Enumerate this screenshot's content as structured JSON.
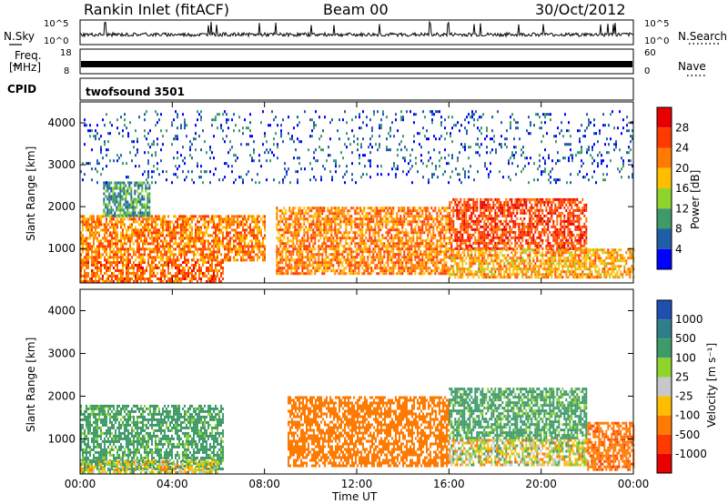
{
  "header": {
    "station": "Rankin Inlet (fitACF)",
    "beam": "Beam 00",
    "date": "30/Oct/2012"
  },
  "top_panels": {
    "nsky_label": "N.Sky",
    "nsky_ticks": [
      "10^5",
      "10^0"
    ],
    "nsearch_label": "N.Search",
    "nsearch_ticks": [
      "10^5",
      "10^0"
    ],
    "freq_label_1": "Freq.",
    "freq_label_2": "[MHz]",
    "freq_ticks": [
      "18",
      "8"
    ],
    "nave_label": "Nave",
    "nave_ticks": [
      "60",
      "0"
    ],
    "cpid_label": "CPID",
    "cpid_value": "twofsound 3501"
  },
  "chart_data": [
    {
      "type": "heatmap",
      "title": "",
      "xlabel": "Time UT",
      "ylabel": "Slant Range [km]",
      "x_ticks": [
        "00:00",
        "04:00",
        "08:00",
        "12:00",
        "16:00",
        "20:00",
        "00:00"
      ],
      "x_hours": [
        0,
        4,
        8,
        12,
        16,
        20,
        24
      ],
      "y_ticks": [
        1000,
        2000,
        3000,
        4000
      ],
      "xlim": [
        0,
        24
      ],
      "ylim": [
        180,
        4500
      ],
      "colorbar": {
        "label": "Power [dB]",
        "ticks": [
          "28",
          "24",
          "20",
          "16",
          "12",
          "8",
          "4"
        ],
        "colors": [
          "#e80000",
          "#ff3a00",
          "#ff7a00",
          "#ffbe00",
          "#8fd42b",
          "#3f9a6a",
          "#1f5fa8",
          "#0000ff"
        ]
      },
      "bands": [
        {
          "t0": 0.0,
          "t1": 6.2,
          "r0": 200,
          "r1": 700,
          "value": 26
        },
        {
          "t0": 0.0,
          "t1": 8.0,
          "r0": 700,
          "r1": 1800,
          "value": 24
        },
        {
          "t0": 1.0,
          "t1": 3.0,
          "r0": 1800,
          "r1": 2600,
          "value": 12
        },
        {
          "t0": 8.5,
          "t1": 16.0,
          "r0": 400,
          "r1": 2000,
          "value": 24
        },
        {
          "t0": 16.0,
          "t1": 22.0,
          "r0": 1000,
          "r1": 2200,
          "value": 28
        },
        {
          "t0": 16.0,
          "t1": 24.0,
          "r0": 300,
          "r1": 1000,
          "value": 22
        },
        {
          "t0": 0.0,
          "t1": 24.0,
          "r0": 2600,
          "r1": 4300,
          "value": 8
        }
      ]
    },
    {
      "type": "heatmap",
      "title": "",
      "xlabel": "Time UT",
      "ylabel": "Slant Range [km]",
      "x_ticks": [
        "00:00",
        "04:00",
        "08:00",
        "12:00",
        "16:00",
        "20:00",
        "00:00"
      ],
      "x_hours": [
        0,
        4,
        8,
        12,
        16,
        20,
        24
      ],
      "y_ticks": [
        1000,
        2000,
        3000,
        4000
      ],
      "xlim": [
        0,
        24
      ],
      "ylim": [
        180,
        4500
      ],
      "colorbar": {
        "label": "Velocity [m s⁻¹]",
        "ticks": [
          "1000",
          "500",
          "100",
          "25",
          "-25",
          "-100",
          "-500",
          "-1000"
        ],
        "colors": [
          "#1f4fb0",
          "#2f7f8a",
          "#3f9a6a",
          "#8fd42b",
          "#c8c8c8",
          "#ffbe00",
          "#ff7a00",
          "#ff3a00",
          "#e80000"
        ]
      },
      "bands": [
        {
          "t0": 0.0,
          "t1": 6.2,
          "r0": 300,
          "r1": 1800,
          "value": 200
        },
        {
          "t0": 0.0,
          "t1": 6.0,
          "r0": 200,
          "r1": 500,
          "value": 0
        },
        {
          "t0": 9.0,
          "t1": 16.0,
          "r0": 400,
          "r1": 2000,
          "value": -300
        },
        {
          "t0": 16.0,
          "t1": 22.0,
          "r0": 1000,
          "r1": 2200,
          "value": 200
        },
        {
          "t0": 16.0,
          "t1": 22.0,
          "r0": 400,
          "r1": 1000,
          "value": 0
        },
        {
          "t0": 22.0,
          "t1": 24.0,
          "r0": 300,
          "r1": 1400,
          "value": -400
        }
      ]
    }
  ]
}
